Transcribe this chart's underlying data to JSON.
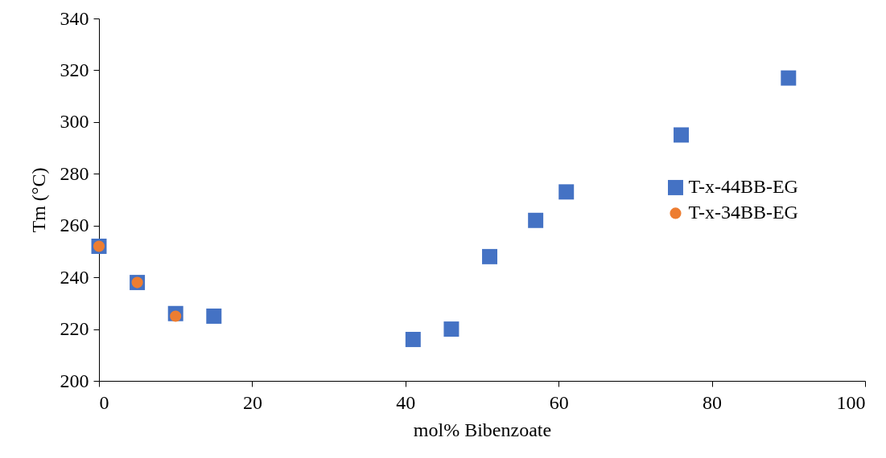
{
  "chart_data": {
    "type": "scatter",
    "xlabel": "mol% Bibenzoate",
    "ylabel": "Tm (°C)",
    "xlim": [
      0,
      100
    ],
    "xticks": [
      0,
      20,
      40,
      60,
      80,
      100
    ],
    "ylim": [
      200,
      340
    ],
    "yticks": [
      200,
      220,
      240,
      260,
      280,
      300,
      320,
      340
    ],
    "grid": false,
    "legend": "right",
    "series": [
      {
        "name": "T-x-44BB-EG",
        "color": "#4472c4",
        "marker": "square",
        "x": [
          0,
          5,
          10,
          15,
          41,
          46,
          51,
          57,
          61,
          76,
          90
        ],
        "values": [
          252,
          238,
          226,
          225,
          216,
          220,
          248,
          262,
          273,
          295,
          317
        ]
      },
      {
        "name": "T-x-34BB-EG",
        "color": "#ed7d31",
        "marker": "circle",
        "x": [
          0,
          5,
          10
        ],
        "values": [
          252,
          238,
          225
        ]
      }
    ]
  }
}
